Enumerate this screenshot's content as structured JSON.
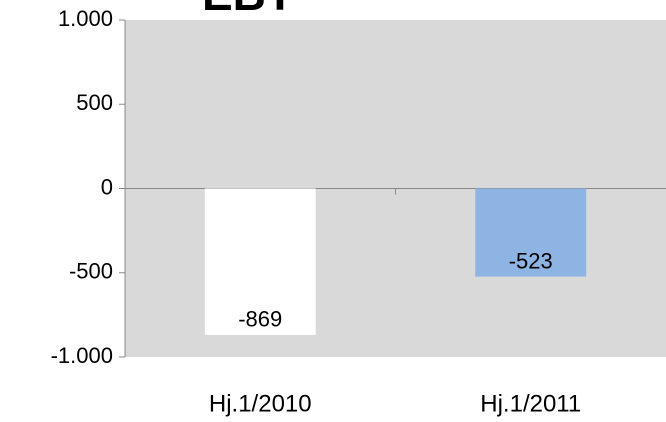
{
  "chart_data": {
    "type": "bar",
    "title": "EBT",
    "categories": [
      "Hj.1/2010",
      "Hj.1/2011"
    ],
    "values": [
      -869,
      -523
    ],
    "colors": [
      "#ffffff",
      "#8db4e2"
    ],
    "ylim": [
      -1000,
      1000
    ],
    "yticks": [
      {
        "value": -1000,
        "label": "-1.000"
      },
      -500,
      0,
      500,
      {
        "value": 1000,
        "label": "1.000"
      }
    ],
    "grid": false
  }
}
